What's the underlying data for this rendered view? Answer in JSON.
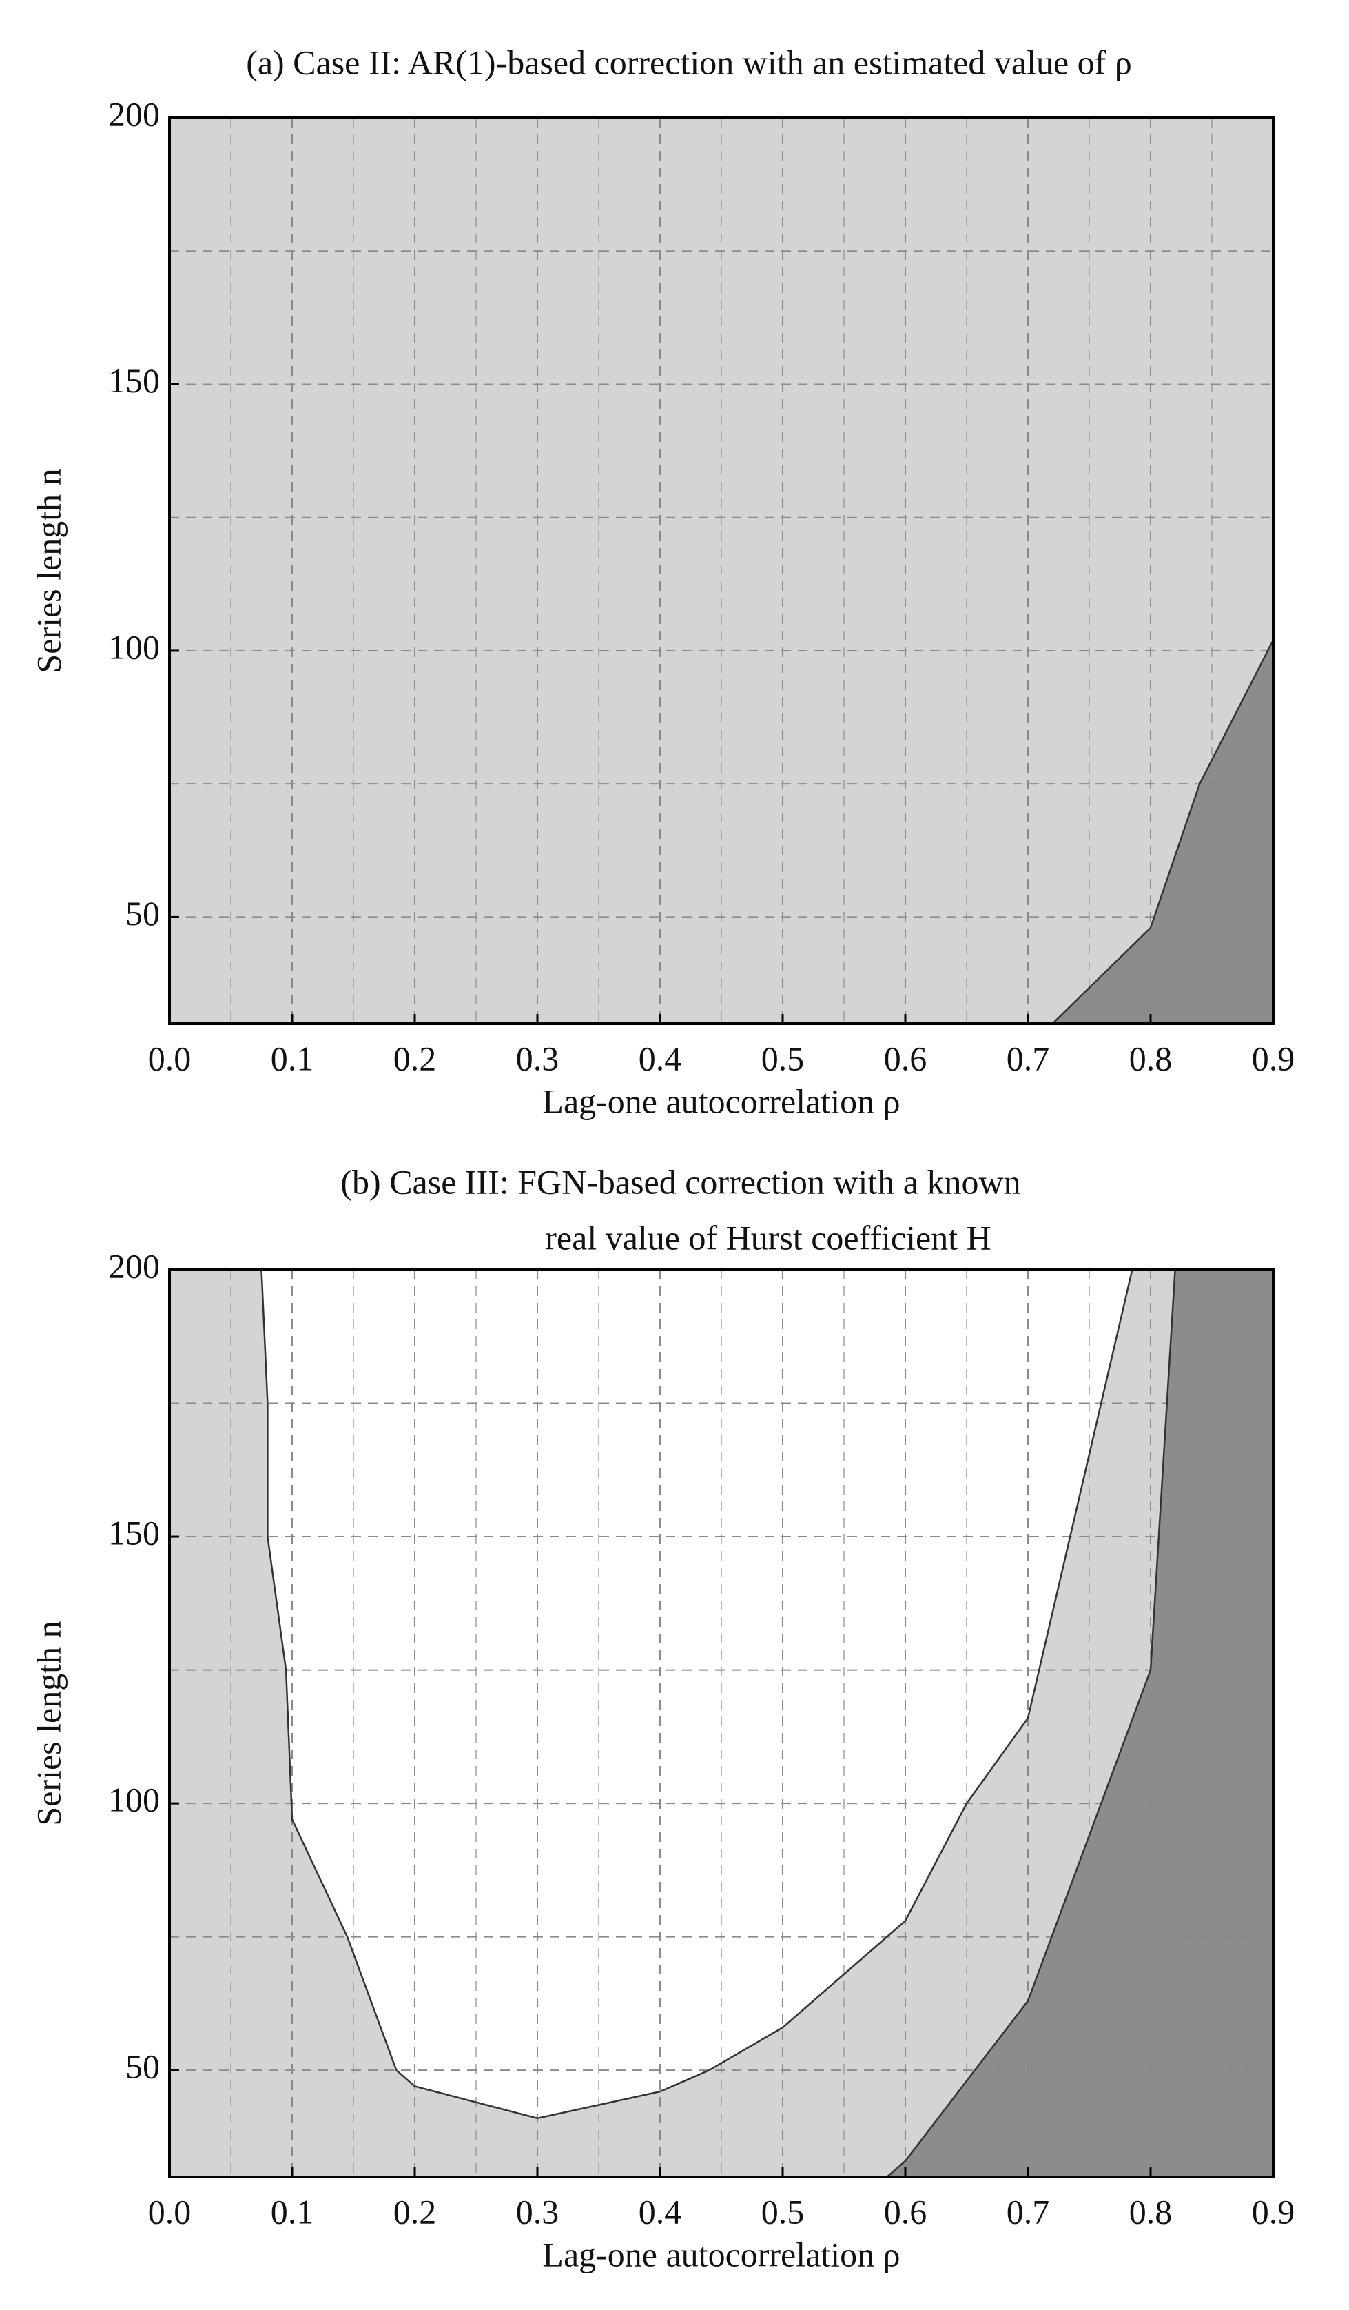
{
  "chart_data": [
    {
      "type": "area",
      "title": "(a) Case II: AR(1)-based correction with an estimated value of ρ",
      "xlabel": "Lag-one autocorrelation ρ",
      "ylabel": "Series length n",
      "background": "#d4d4d4",
      "xlim": [
        0,
        0.9
      ],
      "ylim": [
        30,
        200
      ],
      "xticks": [
        {
          "value": 0,
          "label": "0.0"
        },
        0.1,
        0.2,
        0.3,
        0.4,
        0.5,
        0.6,
        0.7,
        0.8,
        0.9
      ],
      "yticks": [
        50,
        100,
        150,
        200
      ],
      "grid": true,
      "series": [
        {
          "color": "#8c8c8c",
          "x": [
            0.72,
            0.8,
            0.84,
            0.9
          ],
          "values": [
            30,
            48,
            75,
            102
          ]
        }
      ]
    },
    {
      "type": "area",
      "title": [
        "(b) Case III: FGN-based correction with a known",
        "real value of Hurst coefficient H"
      ],
      "xlabel": "Lag-one autocorrelation ρ",
      "ylabel": "Series length n",
      "background": "#d4d4d4",
      "xlim": [
        0,
        0.9
      ],
      "ylim": [
        30,
        200
      ],
      "xticks": [
        {
          "value": 0,
          "label": "0.0"
        },
        0.1,
        0.2,
        0.3,
        0.4,
        0.5,
        0.6,
        0.7,
        0.8,
        0.9
      ],
      "yticks": [
        50,
        100,
        150,
        200
      ],
      "grid": true,
      "series": [
        {
          "color": "#ffffff",
          "x": [
            0.075,
            0.08,
            0.08,
            0.095,
            0.1,
            0.145,
            0.185,
            0.2,
            0.3,
            0.4,
            0.44,
            0.5,
            0.6,
            0.65,
            0.7,
            0.785
          ],
          "values": [
            200,
            175,
            150,
            125,
            97,
            75,
            50,
            47,
            41,
            46,
            50,
            58,
            78,
            100,
            116,
            200
          ]
        },
        {
          "color": "#8c8c8c",
          "x": [
            0.585,
            0.6,
            0.7,
            0.8,
            0.82
          ],
          "values": [
            30,
            33,
            63,
            125,
            200
          ]
        }
      ]
    }
  ]
}
